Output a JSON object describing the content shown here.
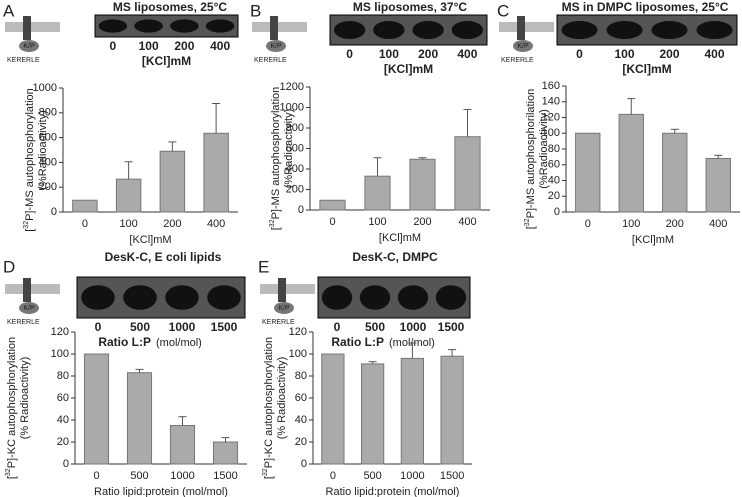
{
  "chart_data": [
    {
      "type": "bar",
      "panel": "A",
      "title": "MS liposomes, 25°C",
      "gel_lanes": [
        "0",
        "100",
        "200",
        "400"
      ],
      "gel_label": "[KCl]mM",
      "diagram": {
        "label": "K/P",
        "sequence": "KERERLE"
      },
      "ylabel": {
        "pre": "[",
        "sup": "32",
        "main": "P]-MS autophosphorylation",
        "line2": "(%Radioactivity)"
      },
      "xlabel": "[KCl]mM",
      "categories": [
        "0",
        "100",
        "200",
        "400"
      ],
      "values": [
        95,
        265,
        490,
        635
      ],
      "errors": [
        null,
        140,
        75,
        240
      ],
      "ylim": [
        0,
        1000
      ],
      "yticks": [
        0,
        200,
        400,
        600,
        800,
        1000
      ],
      "color": "#aaaaaa"
    },
    {
      "type": "bar",
      "panel": "B",
      "title": "MS liposomes, 37°C",
      "gel_lanes": [
        "0",
        "100",
        "200",
        "400"
      ],
      "gel_label": "[KCl]mM",
      "diagram": {
        "label": "K/P",
        "sequence": "KERERLE"
      },
      "ylabel": {
        "pre": "[",
        "sup": "32",
        "main": "P]-MS autophosphorylation",
        "line2": "(%Radioactivity)"
      },
      "xlabel": "[KCl]mM",
      "categories": [
        "0",
        "100",
        "200",
        "400"
      ],
      "values": [
        95,
        330,
        495,
        715
      ],
      "errors": [
        null,
        180,
        15,
        265
      ],
      "ylim": [
        0,
        1200
      ],
      "yticks": [
        0,
        200,
        400,
        600,
        800,
        1000,
        1200
      ],
      "color": "#aaaaaa"
    },
    {
      "type": "bar",
      "panel": "C",
      "title": "MS in DMPC liposomes, 25°C",
      "gel_lanes": [
        "0",
        "100",
        "200",
        "400"
      ],
      "gel_label": "[KCl]mM",
      "diagram": {
        "label": "K/P",
        "sequence": "KERERLE"
      },
      "ylabel": {
        "pre": "[",
        "sup": "32",
        "main": "P]-MS autophosphorilation",
        "line2": "(%Radioactivity)"
      },
      "xlabel": "[KCl]mM",
      "categories": [
        "0",
        "100",
        "200",
        "400"
      ],
      "values": [
        100,
        124,
        100,
        68
      ],
      "errors": [
        null,
        20,
        5,
        4
      ],
      "ylim": [
        0,
        160
      ],
      "yticks": [
        0,
        20,
        40,
        60,
        80,
        100,
        120,
        140,
        160
      ],
      "color": "#aaaaaa"
    },
    {
      "type": "bar",
      "panel": "D",
      "title": "DesK-C, E coli lipids",
      "gel_lanes": [
        "0",
        "500",
        "1000",
        "1500"
      ],
      "gel_label": "Ratio L:P",
      "gel_unit": "(mol/mol)",
      "diagram": {
        "label": "K/P",
        "sequence": "KERERLE"
      },
      "ylabel": {
        "pre": "[",
        "sup": "32",
        "main": "P]-KC autophosphorylation",
        "line2": "(% Radioactivity)"
      },
      "xlabel": "Ratio lipid:protein (mol/mol)",
      "categories": [
        "0",
        "500",
        "1000",
        "1500"
      ],
      "values": [
        100,
        83,
        35,
        20
      ],
      "errors": [
        null,
        3,
        8,
        4
      ],
      "ylim": [
        0,
        120
      ],
      "yticks": [
        0,
        20,
        40,
        60,
        80,
        100,
        120
      ],
      "color": "#aaaaaa"
    },
    {
      "type": "bar",
      "panel": "E",
      "title": "DesK-C, DMPC",
      "gel_lanes": [
        "0",
        "500",
        "1000",
        "1500"
      ],
      "gel_label": "Ratio L:P",
      "gel_unit": "(mol/mol)",
      "diagram": {
        "label": "K/P",
        "sequence": "KERERLE"
      },
      "ylabel": {
        "pre": "[",
        "sup": "32",
        "main": "P]-KC autophosphorylation",
        "line2": "(% Radioactivity)"
      },
      "xlabel": "Ratio lipid:protein (mol/mol)",
      "categories": [
        "0",
        "500",
        "1000",
        "1500"
      ],
      "values": [
        100,
        91,
        96,
        98
      ],
      "errors": [
        null,
        2,
        14,
        6
      ],
      "ylim": [
        0,
        120
      ],
      "yticks": [
        0,
        20,
        40,
        60,
        80,
        100,
        120
      ],
      "color": "#aaaaaa"
    }
  ]
}
